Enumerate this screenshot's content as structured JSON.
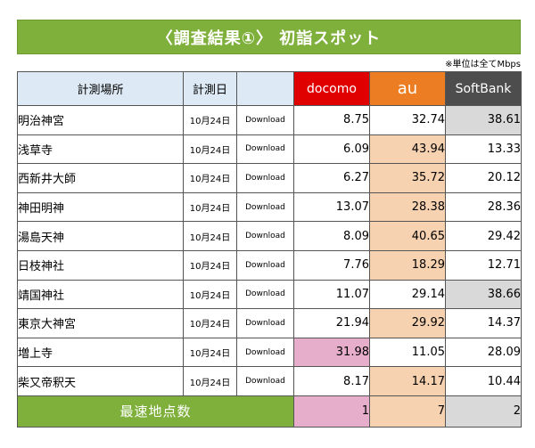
{
  "title": "〈調査結果①〉 初詣スポット",
  "unit_note": "※単位は全てMbps",
  "headers": {
    "place": "計測場所",
    "date": "計測日",
    "type": "",
    "docomo": "docomo",
    "au": "au",
    "softbank": "SoftBank"
  },
  "rows": [
    {
      "place": "明治神宮",
      "date": "10月24日",
      "type": "Download",
      "docomo": "8.75",
      "au": "32.74",
      "softbank": "38.61"
    },
    {
      "place": "浅草寺",
      "date": "10月24日",
      "type": "Download",
      "docomo": "6.09",
      "au": "43.94",
      "softbank": "13.33"
    },
    {
      "place": "西新井大師",
      "date": "10月24日",
      "type": "Download",
      "docomo": "6.27",
      "au": "35.72",
      "softbank": "20.12"
    },
    {
      "place": "神田明神",
      "date": "10月24日",
      "type": "Download",
      "docomo": "13.07",
      "au": "28.38",
      "softbank": "28.36"
    },
    {
      "place": "湯島天神",
      "date": "10月24日",
      "type": "Download",
      "docomo": "8.09",
      "au": "40.65",
      "softbank": "29.42"
    },
    {
      "place": "日枝神社",
      "date": "10月24日",
      "type": "Download",
      "docomo": "7.76",
      "au": "18.29",
      "softbank": "12.71"
    },
    {
      "place": "靖国神社",
      "date": "10月24日",
      "type": "Download",
      "docomo": "11.07",
      "au": "29.14",
      "softbank": "38.66"
    },
    {
      "place": "東京大神宮",
      "date": "10月24日",
      "type": "Download",
      "docomo": "21.94",
      "au": "29.92",
      "softbank": "14.37"
    },
    {
      "place": "増上寺",
      "date": "10月24日",
      "type": "Download",
      "docomo": "31.98",
      "au": "11.05",
      "softbank": "28.09"
    },
    {
      "place": "柴又帝釈天",
      "date": "10月24日",
      "type": "Download",
      "docomo": "8.17",
      "au": "14.17",
      "softbank": "10.44"
    }
  ],
  "footer": {
    "label": "最速地点数",
    "docomo": "1",
    "au": "7",
    "softbank": "2"
  },
  "colors": {
    "title_bg": "#7fb03c",
    "docomo": "#e00000",
    "au": "#ed7d22",
    "softbank": "#4d4d4d",
    "highlight_docomo": "#e6aecb",
    "highlight_au": "#f6d2b1",
    "highlight_softbank": "#d9d9d9"
  }
}
